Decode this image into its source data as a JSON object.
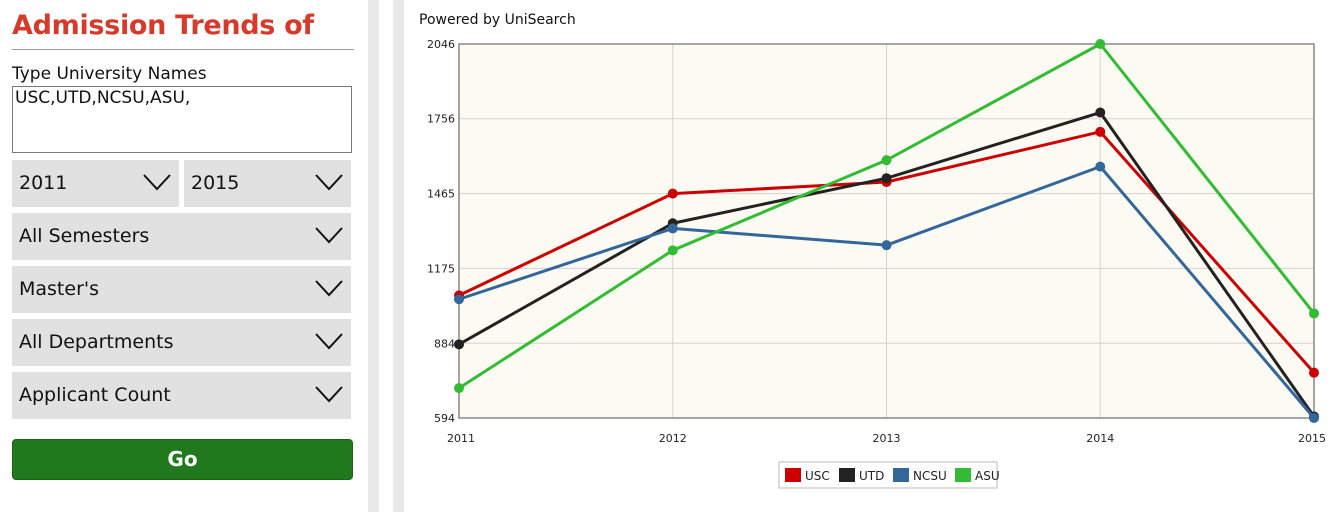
{
  "sidebar": {
    "title": "Admission Trends of",
    "input_label": "Type University Names",
    "input_value": "USC,UTD,NCSU,ASU,",
    "from_year": "2011",
    "to_year": "2015",
    "semester": "All Semesters",
    "degree": "Master's",
    "department": "All Departments",
    "metric": "Applicant Count",
    "go_label": "Go"
  },
  "chart": {
    "powered_by": "Powered by UniSearch"
  },
  "chart_data": {
    "type": "line",
    "title": "",
    "xlabel": "",
    "ylabel": "",
    "x": [
      "2011",
      "2012",
      "2013",
      "2014",
      "2015"
    ],
    "yticks": [
      594,
      884,
      1175,
      1465,
      1756,
      2046
    ],
    "ylim": [
      594,
      2046
    ],
    "grid": true,
    "legend_position": "bottom-center",
    "series": [
      {
        "name": "USC",
        "color": "#cc0000",
        "values": [
          1070,
          1465,
          1510,
          1705,
          770
        ]
      },
      {
        "name": "UTD",
        "color": "#222222",
        "values": [
          880,
          1350,
          1525,
          1780,
          600
        ]
      },
      {
        "name": "NCSU",
        "color": "#336699",
        "values": [
          1055,
          1330,
          1265,
          1570,
          594
        ]
      },
      {
        "name": "ASU",
        "color": "#33bb33",
        "values": [
          710,
          1245,
          1595,
          2046,
          1000
        ]
      }
    ]
  }
}
